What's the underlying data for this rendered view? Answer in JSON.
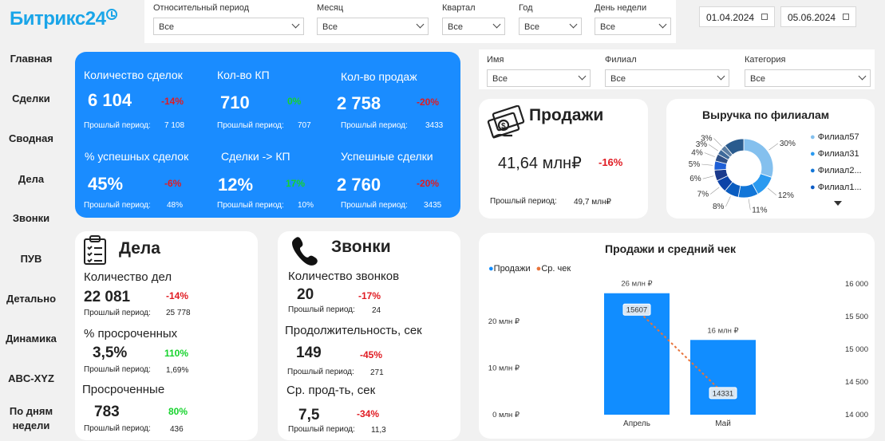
{
  "logo": {
    "text": "Битрикс24"
  },
  "filters": [
    {
      "label": "Относительный период",
      "value": "Все"
    },
    {
      "label": "Месяц",
      "value": "Все"
    },
    {
      "label": "Квартал",
      "value": "Все"
    },
    {
      "label": "Год",
      "value": "Все"
    },
    {
      "label": "День недели",
      "value": "Все"
    }
  ],
  "dates": {
    "from": "01.04.2024",
    "to": "05.06.2024"
  },
  "filters2": [
    {
      "label": "Имя",
      "value": "Все"
    },
    {
      "label": "Филиал",
      "value": "Все"
    },
    {
      "label": "Категория",
      "value": "Все"
    }
  ],
  "nav": [
    "Главная",
    "Сделки",
    "Сводная",
    "Дела",
    "Звонки",
    "ПУВ",
    "Детально",
    "Динамика",
    "ABC-XYZ",
    "По дням",
    "недели"
  ],
  "kpis": [
    {
      "title": "Количество сделок",
      "value": "6 104",
      "delta": "-14%",
      "prev_label": "Прошлый период:",
      "prev": "7 108"
    },
    {
      "title": "Кол-во КП",
      "value": "710",
      "delta": "0%",
      "prev_label": "Прошлый период:",
      "prev": "707"
    },
    {
      "title": "Кол-во продаж",
      "value": "2 758",
      "delta": "-20%",
      "prev_label": "Прошлый период:",
      "prev": "3433"
    },
    {
      "title": "% успешных сделок",
      "value": "45%",
      "delta": "-6%",
      "prev_label": "Прошлый период:",
      "prev": "48%"
    },
    {
      "title": "Сделки -> КП",
      "value": "12%",
      "delta": "17%",
      "prev_label": "Прошлый период:",
      "prev": "10%"
    },
    {
      "title": "Успешные сделки",
      "value": "2 760",
      "delta": "-20%",
      "prev_label": "Прошлый период:",
      "prev": "3435"
    }
  ],
  "sales": {
    "title": "Продажи",
    "value": "41,64 млн₽",
    "delta": "-16%",
    "prev_label": "Прошлый период:",
    "prev": "49,7 млн₽"
  },
  "revenue": {
    "title": "Выручка по филиалам",
    "legend": [
      "Филиал57",
      "Филиал31",
      "Филиал2...",
      "Филиал1..."
    ],
    "slices": [
      {
        "label": "30%",
        "value": 30,
        "color": "#84c0ee"
      },
      {
        "label": "12%",
        "value": 12,
        "color": "#2a9af0"
      },
      {
        "label": "11%",
        "value": 11,
        "color": "#1276d8"
      },
      {
        "label": "8%",
        "value": 8,
        "color": "#0a5cc0"
      },
      {
        "label": "7%",
        "value": 7,
        "color": "#0d43a8"
      },
      {
        "label": "6%",
        "value": 6,
        "color": "#1b3a8c"
      },
      {
        "label": "5%",
        "value": 5,
        "color": "#1e5fd6"
      },
      {
        "label": "4%",
        "value": 4,
        "color": "#2e4f86"
      },
      {
        "label": "3%",
        "value": 3,
        "color": "#3f6a9a"
      },
      {
        "label": "3%",
        "value": 3,
        "color": "#5d7fa4"
      },
      {
        "value": 11,
        "color": "#2a5b8e"
      }
    ]
  },
  "tasks": {
    "title": "Дела",
    "items": [
      {
        "label": "Количество дел",
        "value": "22 081",
        "delta": "-14%",
        "prev_label": "Прошлый период:",
        "prev": "25 778"
      },
      {
        "label": "% просроченных",
        "value": "3,5%",
        "delta": "110%",
        "prev_label": "Прошлый период:",
        "prev": "1,69%"
      },
      {
        "label": "Просроченные",
        "value": "783",
        "delta": "80%",
        "prev_label": "Прошлый период:",
        "prev": "436"
      }
    ]
  },
  "calls": {
    "title": "Звонки",
    "items": [
      {
        "label": "Количество звонков",
        "value": "20",
        "delta": "-17%",
        "prev_label": "Прошлый период:",
        "prev": "24"
      },
      {
        "label": "Продолжительность, сек",
        "value": "149",
        "delta": "-45%",
        "prev_label": "Прошлый период:",
        "prev": "271"
      },
      {
        "label": "Ср. прод-ть, сек",
        "value": "7,5",
        "delta": "-34%",
        "prev_label": "Прошлый период:",
        "prev": "11,3"
      }
    ]
  },
  "chart_data": {
    "type": "bar",
    "title": "Продажи и средний чек",
    "categories": [
      "Апрель",
      "Май"
    ],
    "series": [
      {
        "name": "Продажи",
        "type": "bar",
        "values": [
          26,
          16
        ],
        "labels": [
          "26 млн ₽",
          "16 млн ₽"
        ],
        "color": "#118dff"
      },
      {
        "name": "Ср. чек",
        "type": "line",
        "values": [
          15607,
          14331
        ],
        "labels": [
          "15607",
          "14331"
        ],
        "color": "#e8743b"
      }
    ],
    "y_left": {
      "ticks": [
        "0 млн ₽",
        "10 млн ₽",
        "20 млн ₽"
      ],
      "ylim": [
        0,
        28
      ]
    },
    "y_right": {
      "ticks": [
        "14 000",
        "14 500",
        "15 000",
        "15 500",
        "16 000"
      ],
      "ylim": [
        14000,
        16000
      ]
    },
    "legend": "top-left"
  }
}
